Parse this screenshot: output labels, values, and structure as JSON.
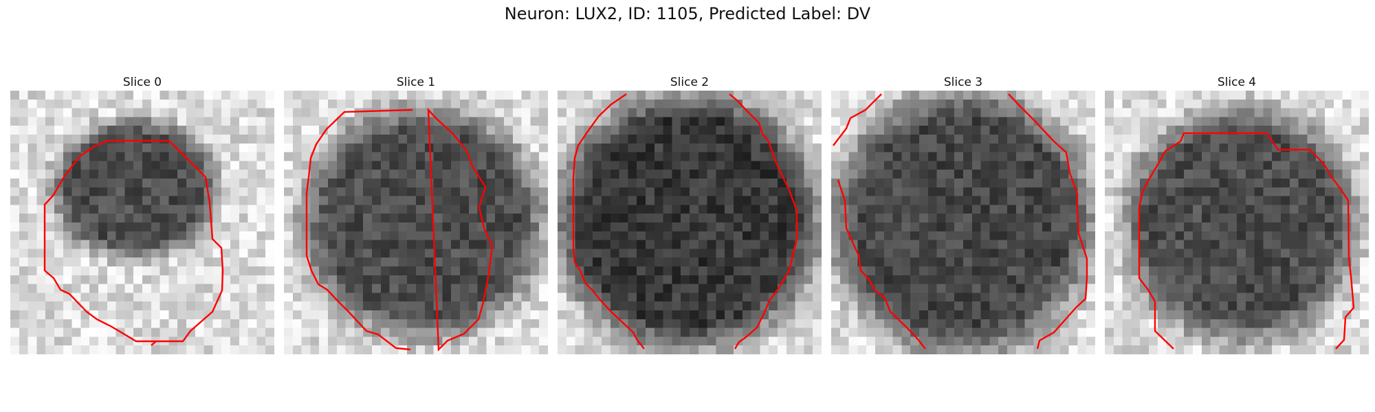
{
  "figure": {
    "title": "Neuron: LUX2, ID: 1105, Predicted Label: DV"
  },
  "panels": [
    {
      "title": "Slice 0"
    },
    {
      "title": "Slice 1"
    },
    {
      "title": "Slice 2"
    },
    {
      "title": "Slice 3"
    },
    {
      "title": "Slice 4"
    }
  ],
  "colors": {
    "contour": "#ff0000",
    "background": "#ffffff"
  }
}
